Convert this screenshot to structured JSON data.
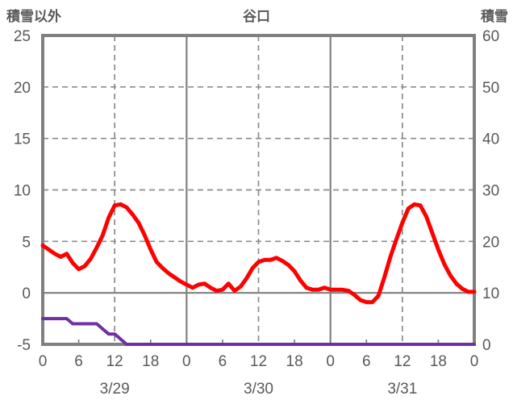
{
  "header": {
    "left_label": "積雪以外",
    "title": "谷口",
    "right_label": "積雪"
  },
  "colors": {
    "temperature_line": "#ff0000",
    "snow_line": "#7030a0",
    "axis_border": "#808080",
    "gridline": "#8c8c8c",
    "zero_line": "#808080",
    "text": "#595959",
    "background": "#ffffff"
  },
  "chart_data": {
    "type": "line",
    "title": "谷口",
    "station": "谷口",
    "legend_position": "none",
    "grid": "on",
    "left_axis": {
      "label": "積雪以外",
      "min": -5,
      "max": 25,
      "ticks": [
        25,
        20,
        15,
        10,
        5,
        0,
        -5
      ],
      "dashed_gridline_values": [
        20,
        15,
        10,
        5
      ],
      "zero_line_value": 0
    },
    "right_axis": {
      "label": "積雪",
      "min": 0,
      "max": 60,
      "ticks": [
        60,
        50,
        40,
        30,
        20,
        10,
        0
      ]
    },
    "x_axis": {
      "unit": "hour",
      "min_hour": 0,
      "max_hour": 72,
      "tick_hours": [
        0,
        6,
        12,
        18,
        24,
        30,
        36,
        42,
        48,
        54,
        60,
        66,
        72
      ],
      "tick_labels": [
        "0",
        "6",
        "12",
        "18",
        "0",
        "6",
        "12",
        "18",
        "0",
        "6",
        "12",
        "18",
        "0"
      ],
      "minor_tick_hours": [
        6,
        18,
        30,
        42,
        54,
        66
      ],
      "dashed_gridline_hours": [
        12,
        36,
        60
      ],
      "solid_gridline_hours": [
        24,
        48
      ],
      "date_labels": [
        {
          "text": "3/29",
          "hour": 12
        },
        {
          "text": "3/30",
          "hour": 36
        },
        {
          "text": "3/31",
          "hour": 60
        }
      ]
    },
    "series": [
      {
        "name": "積雪以外",
        "axis": "left",
        "color": "#ff0000",
        "x": [
          0,
          1,
          2,
          3,
          4,
          5,
          6,
          7,
          8,
          9,
          10,
          11,
          12,
          13,
          14,
          15,
          16,
          17,
          18,
          19,
          20,
          21,
          22,
          23,
          24,
          25,
          26,
          27,
          28,
          29,
          30,
          31,
          32,
          33,
          34,
          35,
          36,
          37,
          38,
          39,
          40,
          41,
          42,
          43,
          44,
          45,
          46,
          47,
          48,
          49,
          50,
          51,
          52,
          53,
          54,
          55,
          56,
          57,
          58,
          59,
          60,
          61,
          62,
          63,
          64,
          65,
          66,
          67,
          68,
          69,
          70,
          71,
          72
        ],
        "values": [
          4.6,
          4.2,
          3.8,
          3.5,
          3.8,
          2.9,
          2.3,
          2.6,
          3.3,
          4.4,
          5.6,
          7.3,
          8.5,
          8.6,
          8.3,
          7.6,
          6.8,
          5.6,
          4.2,
          3.0,
          2.4,
          1.9,
          1.5,
          1.1,
          0.8,
          0.5,
          0.8,
          0.9,
          0.5,
          0.2,
          0.3,
          0.9,
          0.2,
          0.6,
          1.4,
          2.4,
          3.0,
          3.2,
          3.2,
          3.4,
          3.1,
          2.7,
          2.1,
          1.2,
          0.5,
          0.3,
          0.3,
          0.5,
          0.3,
          0.3,
          0.3,
          0.2,
          -0.2,
          -0.7,
          -0.9,
          -0.9,
          -0.3,
          1.5,
          3.5,
          5.2,
          6.8,
          8.2,
          8.6,
          8.5,
          7.4,
          5.8,
          4.2,
          2.8,
          1.7,
          0.9,
          0.4,
          0.1,
          0.1
        ]
      },
      {
        "name": "積雪",
        "axis": "right",
        "color": "#7030a0",
        "x": [
          0,
          1,
          2,
          3,
          4,
          5,
          6,
          7,
          8,
          9,
          10,
          11,
          12,
          13,
          14,
          15,
          16,
          17,
          18,
          19,
          20,
          21,
          22,
          23,
          24,
          25,
          26,
          27,
          28,
          29,
          30,
          31,
          32,
          33,
          34,
          35,
          36,
          37,
          38,
          39,
          40,
          41,
          42,
          43,
          44,
          45,
          46,
          47,
          48,
          49,
          50,
          51,
          52,
          53,
          54,
          55,
          56,
          57,
          58,
          59,
          60,
          61,
          62,
          63,
          64,
          65,
          66,
          67,
          68,
          69,
          70,
          71,
          72
        ],
        "values": [
          5,
          5,
          5,
          5,
          5,
          4,
          4,
          4,
          4,
          4,
          3,
          2,
          2,
          1,
          0,
          0,
          0,
          0,
          0,
          0,
          0,
          0,
          0,
          0,
          0,
          0,
          0,
          0,
          0,
          0,
          0,
          0,
          0,
          0,
          0,
          0,
          0,
          0,
          0,
          0,
          0,
          0,
          0,
          0,
          0,
          0,
          0,
          0,
          0,
          0,
          0,
          0,
          0,
          0,
          0,
          0,
          0,
          0,
          0,
          0,
          0,
          0,
          0,
          0,
          0,
          0,
          0,
          0,
          0,
          0,
          0,
          0,
          0
        ]
      }
    ]
  }
}
